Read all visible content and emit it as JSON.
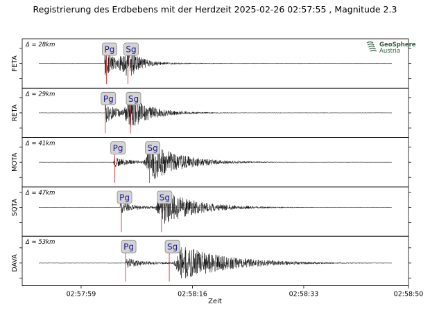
{
  "chart_data": {
    "type": "line",
    "title": "Registrierung des Erdbebens mit der Herdzeit 2025-02-26 02:57:55 , Magnitude 2.3",
    "xlabel": "Zeit",
    "ylabel": "",
    "x_range_seconds": [
      0,
      59
    ],
    "x_ticks": [
      {
        "label": "02:57:59",
        "t": 9
      },
      {
        "label": "02:58:16",
        "t": 26
      },
      {
        "label": "02:58:33",
        "t": 43
      },
      {
        "label": "02:58:50",
        "t": 59
      }
    ],
    "trace_span_seconds": [
      0,
      59
    ],
    "grid": false,
    "logo": {
      "name": "GeoSphere",
      "subname": "Austria",
      "icon": "geosphere-logo-icon",
      "color": "#2e5a40"
    },
    "colors": {
      "trace": "#000000",
      "baseline": "#aaaaaa",
      "pick_line": "#e03030",
      "pick_box": "#d3d3d3",
      "pick_text": "#1a1a8c"
    },
    "stations": [
      {
        "name": "FETA",
        "distance": "Δ = 28km",
        "pg": 11.3,
        "sg": 14.9,
        "onset": 11.0,
        "peak": 14.8,
        "pg_amp": 0.9,
        "sg_amp": 1.2,
        "decay": 0.5,
        "noise": 0.02
      },
      {
        "name": "RETA",
        "distance": "Δ = 29km",
        "pg": 11.1,
        "sg": 15.3,
        "onset": 11.1,
        "peak": 15.5,
        "pg_amp": 0.7,
        "sg_amp": 1.15,
        "decay": 0.3,
        "noise": 0.02
      },
      {
        "name": "MOTA",
        "distance": "Δ = 41km",
        "pg": 12.7,
        "sg": 18.5,
        "onset": 12.5,
        "peak": 19.0,
        "pg_amp": 0.35,
        "sg_amp": 1.4,
        "decay": 0.2,
        "noise": 0.02
      },
      {
        "name": "SQTA",
        "distance": "Δ = 47km",
        "pg": 13.8,
        "sg": 20.5,
        "onset": 13.6,
        "peak": 20.9,
        "pg_amp": 0.4,
        "sg_amp": 1.3,
        "decay": 0.18,
        "noise": 0.02
      },
      {
        "name": "DAVA",
        "distance": "Δ = 53km",
        "pg": 14.5,
        "sg": 21.8,
        "onset": 14.6,
        "peak": 24.0,
        "pg_amp": 0.35,
        "sg_amp": 1.35,
        "decay": 0.13,
        "noise": 0.02
      }
    ]
  }
}
